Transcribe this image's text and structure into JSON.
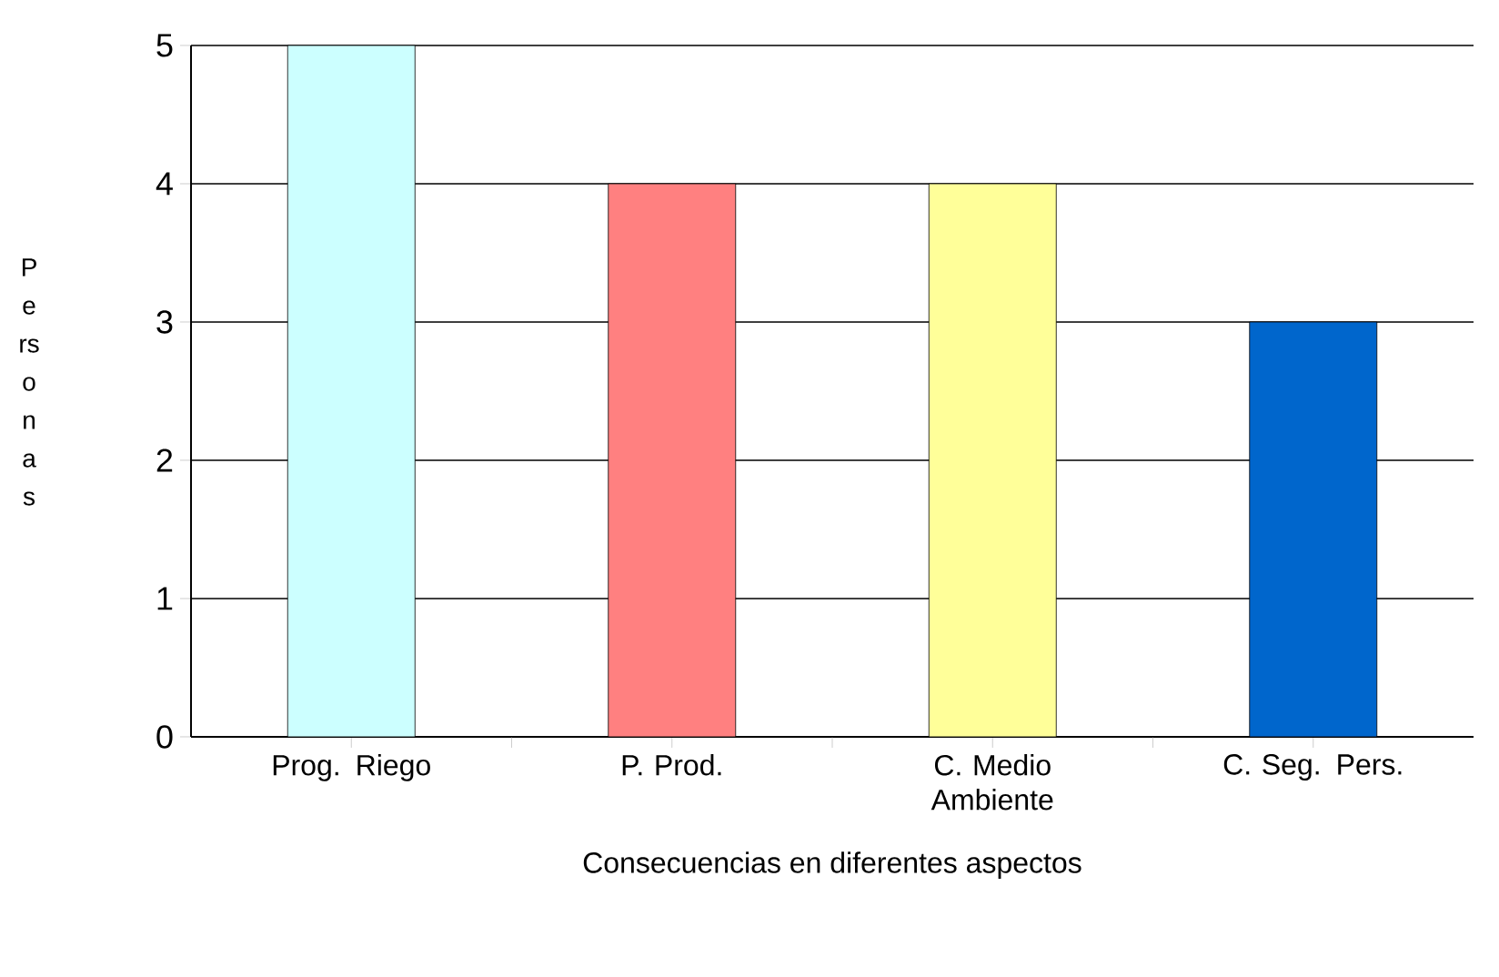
{
  "chart_data": {
    "type": "bar",
    "xlabel": "Consecuencias en diferentes aspectos",
    "ylabel": "Personas",
    "categories": [
      "Prog. Riego",
      "P. Prod.",
      "C. Medio Ambiente",
      "C. Seg. Pers."
    ],
    "values": [
      5,
      4,
      4,
      3
    ],
    "colors": [
      "#ccffff",
      "#ff8080",
      "#ffff99",
      "#0066cc"
    ],
    "ylim": [
      0,
      5
    ],
    "yticks": [
      0,
      1,
      2,
      3,
      4,
      5
    ],
    "grid": "y"
  }
}
